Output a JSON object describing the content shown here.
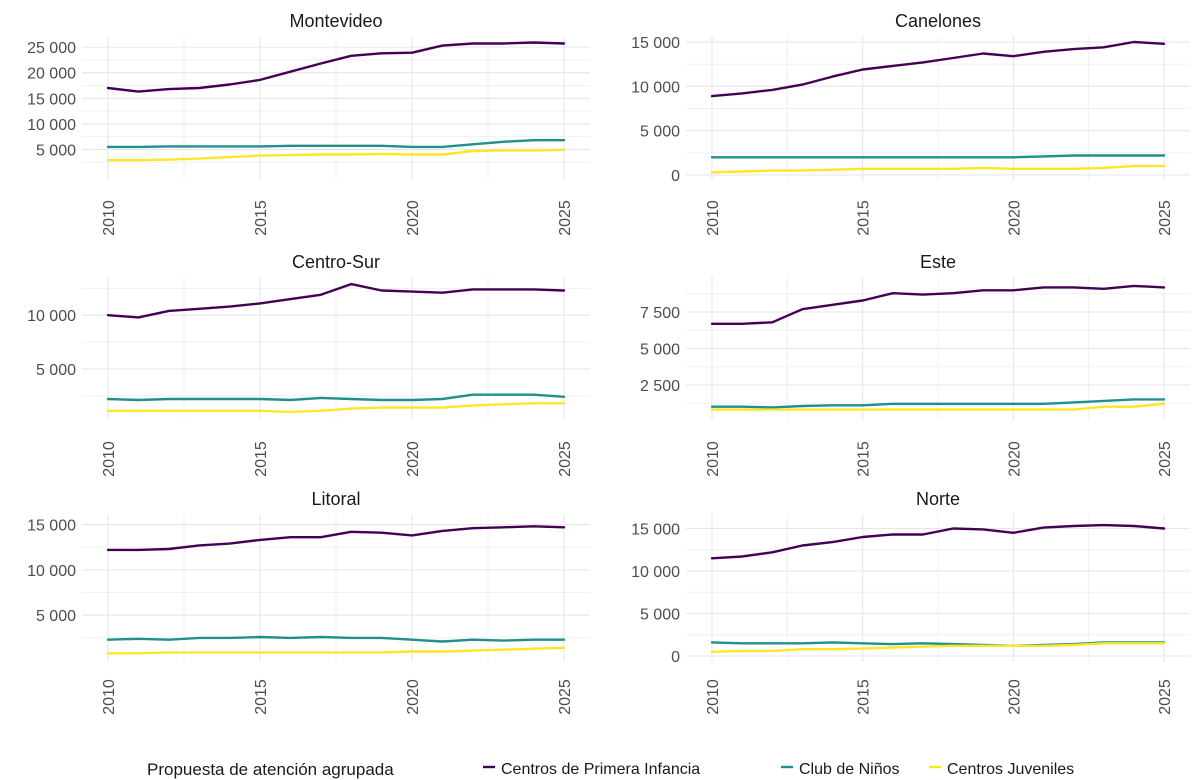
{
  "chart_data": {
    "type": "line",
    "legend": {
      "title": "Propuesta de atención agrupada",
      "position": "bottom",
      "entries": [
        {
          "name": "Centros de Primera Infancia",
          "color": "#440154"
        },
        {
          "name": "Club de Niños",
          "color": "#21908C"
        },
        {
          "name": "Centros Juveniles",
          "color": "#FDE725"
        }
      ]
    },
    "x": [
      2010,
      2011,
      2012,
      2013,
      2014,
      2015,
      2016,
      2017,
      2018,
      2019,
      2020,
      2021,
      2022,
      2023,
      2024,
      2025
    ],
    "x_ticks": [
      "2010",
      "2015",
      "2020",
      "2025"
    ],
    "grid": true,
    "panels": [
      {
        "title": "Montevideo",
        "ylim": [
          0,
          26000
        ],
        "y_ticks": [
          {
            "v": 5000,
            "label": "5 000"
          },
          {
            "v": 10000,
            "label": "10 000"
          },
          {
            "v": 15000,
            "label": "15 000"
          },
          {
            "v": 20000,
            "label": "20 000"
          },
          {
            "v": 25000,
            "label": "25 000"
          }
        ],
        "series": [
          {
            "name": "Centros de Primera Infancia",
            "values": [
              17000,
              16300,
              16800,
              17000,
              17700,
              18600,
              20200,
              21800,
              23300,
              23800,
              23900,
              25300,
              25700,
              25700,
              25900,
              25700
            ]
          },
          {
            "name": "Club de Niños",
            "values": [
              5500,
              5500,
              5600,
              5600,
              5600,
              5600,
              5700,
              5700,
              5700,
              5700,
              5500,
              5500,
              6000,
              6500,
              6800,
              6800
            ]
          },
          {
            "name": "Centros Juveniles",
            "values": [
              2900,
              2900,
              3000,
              3200,
              3500,
              3800,
              3900,
              4000,
              4000,
              4100,
              4000,
              4000,
              4700,
              4800,
              4800,
              4900
            ]
          }
        ]
      },
      {
        "title": "Canelones",
        "ylim": [
          0,
          15000
        ],
        "y_ticks": [
          {
            "v": 0,
            "label": "0"
          },
          {
            "v": 5000,
            "label": "5 000"
          },
          {
            "v": 10000,
            "label": "10 000"
          },
          {
            "v": 15000,
            "label": "15 000"
          }
        ],
        "series": [
          {
            "name": "Centros de Primera Infancia",
            "values": [
              8900,
              9200,
              9600,
              10200,
              11100,
              11900,
              12300,
              12700,
              13200,
              13700,
              13400,
              13900,
              14200,
              14400,
              15000,
              14800
            ]
          },
          {
            "name": "Club de Niños",
            "values": [
              2000,
              2000,
              2000,
              2000,
              2000,
              2000,
              2000,
              2000,
              2000,
              2000,
              2000,
              2100,
              2200,
              2200,
              2200,
              2200
            ]
          },
          {
            "name": "Centros Juveniles",
            "values": [
              300,
              400,
              500,
              500,
              600,
              700,
              700,
              700,
              700,
              800,
              700,
              700,
              700,
              800,
              1000,
              1000
            ]
          }
        ]
      },
      {
        "title": "Centro-Sur",
        "ylim": [
          800,
          13000
        ],
        "y_ticks": [
          {
            "v": 5000,
            "label": "5 000"
          },
          {
            "v": 10000,
            "label": "10 000"
          }
        ],
        "series": [
          {
            "name": "Centros de Primera Infancia",
            "values": [
              10000,
              9800,
              10400,
              10600,
              10800,
              11100,
              11500,
              11900,
              12900,
              12300,
              12200,
              12100,
              12400,
              12400,
              12400,
              12300
            ]
          },
          {
            "name": "Club de Niños",
            "values": [
              2200,
              2100,
              2200,
              2200,
              2200,
              2200,
              2100,
              2300,
              2200,
              2100,
              2100,
              2200,
              2600,
              2600,
              2600,
              2400
            ]
          },
          {
            "name": "Centros Juveniles",
            "values": [
              1100,
              1100,
              1100,
              1100,
              1100,
              1100,
              1000,
              1100,
              1300,
              1400,
              1400,
              1400,
              1600,
              1700,
              1800,
              1800
            ]
          }
        ]
      },
      {
        "title": "Este",
        "ylim": [
          500,
          9500
        ],
        "y_ticks": [
          {
            "v": 2500,
            "label": "2 500"
          },
          {
            "v": 5000,
            "label": "5 000"
          },
          {
            "v": 7500,
            "label": "7 500"
          }
        ],
        "series": [
          {
            "name": "Centros de Primera Infancia",
            "values": [
              6700,
              6700,
              6800,
              7700,
              8000,
              8300,
              8800,
              8700,
              8800,
              9000,
              9000,
              9200,
              9200,
              9100,
              9300,
              9200
            ]
          },
          {
            "name": "Club de Niños",
            "values": [
              1000,
              1000,
              950,
              1050,
              1100,
              1100,
              1200,
              1200,
              1200,
              1200,
              1200,
              1200,
              1300,
              1400,
              1500,
              1500
            ]
          },
          {
            "name": "Centros Juveniles",
            "values": [
              800,
              800,
              800,
              800,
              800,
              800,
              800,
              800,
              800,
              800,
              800,
              800,
              800,
              1000,
              1000,
              1200
            ]
          }
        ]
      },
      {
        "title": "Litoral",
        "ylim": [
          500,
          15500
        ],
        "y_ticks": [
          {
            "v": 5000,
            "label": "5 000"
          },
          {
            "v": 10000,
            "label": "10 000"
          },
          {
            "v": 15000,
            "label": "15 000"
          }
        ],
        "series": [
          {
            "name": "Centros de Primera Infancia",
            "values": [
              12200,
              12200,
              12300,
              12700,
              12900,
              13300,
              13600,
              13600,
              14200,
              14100,
              13800,
              14300,
              14600,
              14700,
              14800,
              14700
            ]
          },
          {
            "name": "Club de Niños",
            "values": [
              2300,
              2400,
              2300,
              2500,
              2500,
              2600,
              2500,
              2600,
              2500,
              2500,
              2300,
              2100,
              2300,
              2200,
              2300,
              2300
            ]
          },
          {
            "name": "Centros Juveniles",
            "values": [
              800,
              800,
              900,
              900,
              900,
              900,
              900,
              900,
              900,
              900,
              1000,
              1000,
              1100,
              1200,
              1300,
              1400
            ]
          }
        ]
      },
      {
        "title": "Norte",
        "ylim": [
          0,
          16000
        ],
        "y_ticks": [
          {
            "v": 0,
            "label": "0"
          },
          {
            "v": 5000,
            "label": "5 000"
          },
          {
            "v": 10000,
            "label": "10 000"
          },
          {
            "v": 15000,
            "label": "15 000"
          }
        ],
        "series": [
          {
            "name": "Centros de Primera Infancia",
            "values": [
              11500,
              11700,
              12200,
              13000,
              13400,
              14000,
              14300,
              14300,
              15000,
              14900,
              14500,
              15100,
              15300,
              15400,
              15300,
              15000
            ]
          },
          {
            "name": "Club de Niños",
            "values": [
              1600,
              1500,
              1500,
              1500,
              1600,
              1500,
              1400,
              1500,
              1400,
              1300,
              1200,
              1300,
              1400,
              1600,
              1600,
              1600
            ]
          },
          {
            "name": "Centros Juveniles",
            "values": [
              500,
              600,
              600,
              800,
              800,
              900,
              1000,
              1100,
              1200,
              1200,
              1200,
              1200,
              1300,
              1500,
              1500,
              1500
            ]
          }
        ]
      }
    ]
  }
}
